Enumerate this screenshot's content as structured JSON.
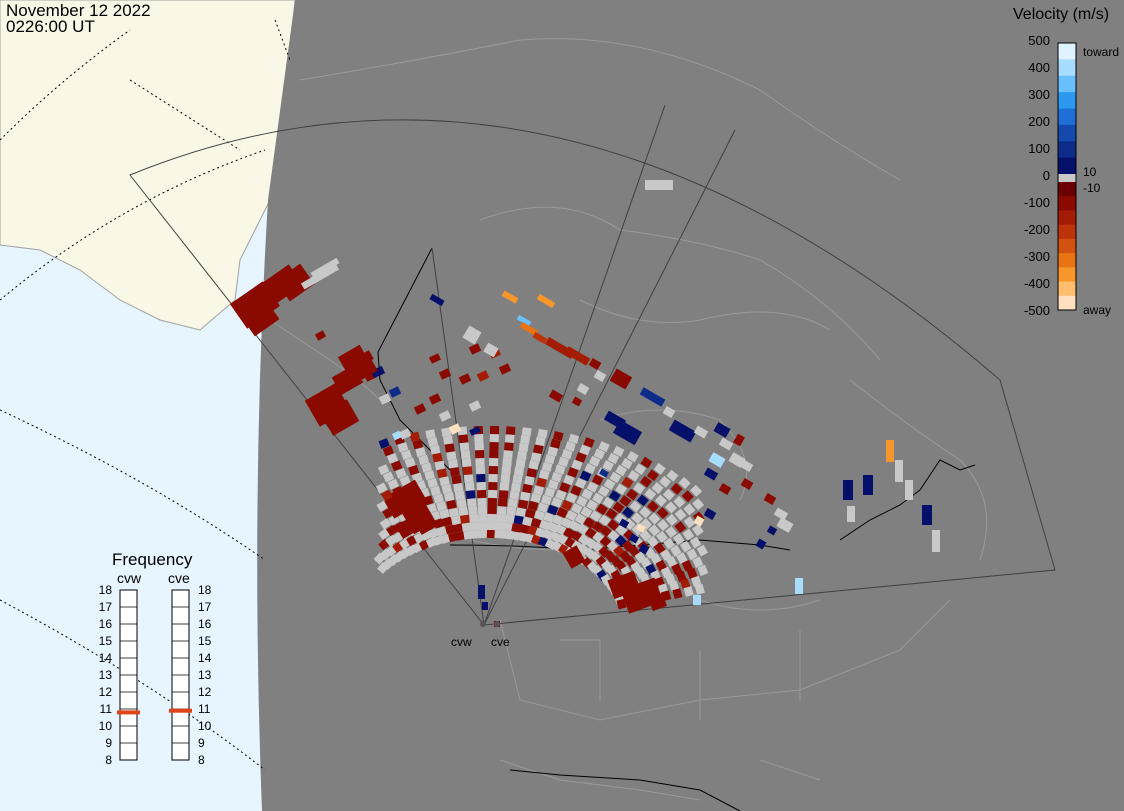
{
  "header": {
    "date": "November 12 2022",
    "time": "0226:00 UT"
  },
  "colorbar": {
    "title": "Velocity (m/s)",
    "ticks": [
      "500",
      "400",
      "300",
      "200",
      "100",
      "0",
      "-100",
      "-200",
      "-300",
      "-400",
      "-500"
    ],
    "inner_ticks": [
      "10",
      "-10"
    ],
    "toward_label": "toward",
    "away_label": "away",
    "toward_colors": [
      "#dff2ff",
      "#a8dcff",
      "#6ac0ff",
      "#2d98f0",
      "#1f6fd6",
      "#1549ad",
      "#0d2c8a",
      "#05106b"
    ],
    "away_colors": [
      "#6b0000",
      "#8a0a00",
      "#a51c05",
      "#bd340a",
      "#d2520f",
      "#e87414",
      "#f7962a",
      "#ffbd6e",
      "#ffe0bf"
    ],
    "ground_scatter_color": "#c8c8c8"
  },
  "frequency": {
    "title": "Frequency",
    "radars": [
      "cvw",
      "cve"
    ],
    "scale": [
      "18",
      "17",
      "16",
      "15",
      "14",
      "13",
      "12",
      "11",
      "10",
      "9",
      "8"
    ],
    "cvw_mhz": 10.8,
    "cve_mhz": 10.9
  },
  "radars": {
    "cvw": "cvw",
    "cve": "cve"
  },
  "map": {
    "land_color": "#808080",
    "out_of_night_color": "#e6f5ff",
    "land_day_color": "#fbf7e6",
    "fov_line_color": "#404040",
    "boundary_color": "#a0a0a0"
  }
}
